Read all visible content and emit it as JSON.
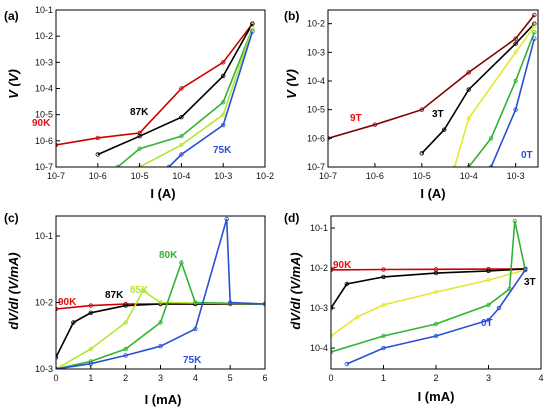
{
  "chart_data": [
    {
      "type": "line",
      "panel": "(a)",
      "xlabel": "I (A)",
      "ylabel": "V (V)",
      "xscale": "log",
      "yscale": "log",
      "xlim": [
        1e-07,
        0.01
      ],
      "ylim": [
        1e-07,
        0.1
      ],
      "xticks": [
        "10-7",
        "10-6",
        "10-5",
        "10-4",
        "10-3",
        "10-2"
      ],
      "yticks": [
        "10-7",
        "10-6",
        "10-5",
        "10-4",
        "10-3",
        "10-2",
        "10-1"
      ],
      "grid": false,
      "annotations": [
        {
          "text": "90K",
          "color": "#e01010"
        },
        {
          "text": "87K",
          "color": "#000000"
        },
        {
          "text": "75K",
          "color": "#2a4fd6"
        }
      ],
      "series": [
        {
          "label": "90K",
          "color": "#cc0000",
          "x": [
            1e-07,
            1e-06,
            1e-05,
            0.0001,
            0.001,
            0.005
          ],
          "y": [
            7e-07,
            1.3e-06,
            2e-06,
            0.0001,
            0.001,
            0.03
          ]
        },
        {
          "label": "87K",
          "color": "#000000",
          "x": [
            1e-06,
            1e-05,
            0.0001,
            0.001,
            0.005
          ],
          "y": [
            3e-07,
            1.5e-06,
            8e-06,
            0.0003,
            0.03
          ]
        },
        {
          "label": "",
          "color": "#32b432",
          "x": [
            3e-06,
            1e-05,
            0.0001,
            0.001,
            0.005
          ],
          "y": [
            1e-07,
            5e-07,
            1.5e-06,
            3e-05,
            0.02
          ]
        },
        {
          "label": "",
          "color": "#b4e632",
          "x": [
            1e-05,
            0.0001,
            0.001,
            0.005
          ],
          "y": [
            1e-07,
            7e-07,
            1e-05,
            0.02
          ]
        },
        {
          "label": "75K",
          "color": "#2a4fd6",
          "x": [
            5e-05,
            0.0001,
            0.001,
            0.005
          ],
          "y": [
            1e-07,
            3e-07,
            4e-06,
            0.015
          ]
        }
      ]
    },
    {
      "type": "line",
      "panel": "(b)",
      "xlabel": "I (A)",
      "ylabel": "V (V)",
      "xscale": "log",
      "yscale": "log",
      "xlim": [
        1e-07,
        0.003
      ],
      "ylim": [
        1e-07,
        0.03
      ],
      "xticks": [
        "10-7",
        "10-6",
        "10-5",
        "10-4",
        "10-3"
      ],
      "yticks": [
        "10-7",
        "10-6",
        "10-5",
        "10-4",
        "10-3",
        "10-2"
      ],
      "grid": false,
      "annotations": [
        {
          "text": "9T",
          "color": "#e01010"
        },
        {
          "text": "3T",
          "color": "#000000"
        },
        {
          "text": "0T",
          "color": "#2a4fd6"
        }
      ],
      "series": [
        {
          "label": "9T",
          "color": "#800000",
          "x": [
            1e-07,
            1e-06,
            1e-05,
            0.0001,
            0.001,
            0.0025
          ],
          "y": [
            1e-06,
            3e-06,
            1e-05,
            0.0002,
            0.003,
            0.02
          ]
        },
        {
          "label": "3T",
          "color": "#000000",
          "x": [
            1e-05,
            3e-05,
            0.0001,
            0.001,
            0.0025
          ],
          "y": [
            3e-07,
            2e-06,
            5e-05,
            0.002,
            0.01
          ]
        },
        {
          "label": "",
          "color": "#e6e632",
          "x": [
            5e-05,
            0.0001,
            0.001,
            0.0025
          ],
          "y": [
            1e-07,
            5e-06,
            0.001,
            0.008
          ]
        },
        {
          "label": "",
          "color": "#32b432",
          "x": [
            0.0001,
            0.0003,
            0.001,
            0.0025
          ],
          "y": [
            1e-07,
            1e-06,
            0.0001,
            0.005
          ]
        },
        {
          "label": "0T",
          "color": "#2a4fd6",
          "x": [
            0.0003,
            0.001,
            0.0025
          ],
          "y": [
            1e-07,
            1e-05,
            0.003
          ]
        }
      ]
    },
    {
      "type": "line",
      "panel": "(c)",
      "xlabel": "I (mA)",
      "ylabel": "dV/dI (V/mA)",
      "xscale": "linear",
      "yscale": "log",
      "xlim": [
        0,
        6
      ],
      "ylim": [
        0.001,
        0.2
      ],
      "xticks": [
        "0",
        "1",
        "2",
        "3",
        "4",
        "5",
        "6"
      ],
      "yticks": [
        "10-3",
        "10-2",
        "10-1"
      ],
      "grid": false,
      "annotations": [
        {
          "text": "90K",
          "color": "#e01010"
        },
        {
          "text": "87K",
          "color": "#000000"
        },
        {
          "text": "85K",
          "color": "#b4e632"
        },
        {
          "text": "80K",
          "color": "#32b432"
        },
        {
          "text": "75K",
          "color": "#2a4fd6"
        }
      ],
      "series": [
        {
          "label": "90K",
          "color": "#cc0000",
          "x": [
            0,
            1,
            2,
            3,
            4,
            5,
            6
          ],
          "y": [
            0.008,
            0.009,
            0.0095,
            0.0095,
            0.0095,
            0.0095,
            0.0095
          ]
        },
        {
          "label": "87K",
          "color": "#000000",
          "x": [
            0,
            0.5,
            1,
            2,
            3,
            4,
            6
          ],
          "y": [
            0.0015,
            0.005,
            0.007,
            0.009,
            0.0095,
            0.0095,
            0.0095
          ]
        },
        {
          "label": "85K",
          "color": "#b4e632",
          "x": [
            0,
            1,
            2,
            2.5,
            3,
            6
          ],
          "y": [
            0.001,
            0.002,
            0.005,
            0.015,
            0.01,
            0.0095
          ]
        },
        {
          "label": "80K",
          "color": "#32b432",
          "x": [
            0,
            1,
            2,
            3,
            3.6,
            4,
            6
          ],
          "y": [
            0.001,
            0.0013,
            0.002,
            0.005,
            0.04,
            0.01,
            0.0095
          ]
        },
        {
          "label": "75K",
          "color": "#2a4fd6",
          "x": [
            0,
            1,
            2,
            3,
            4,
            4.9,
            5,
            6
          ],
          "y": [
            0.001,
            0.0012,
            0.0016,
            0.0022,
            0.004,
            0.18,
            0.01,
            0.0095
          ]
        }
      ]
    },
    {
      "type": "line",
      "panel": "(d)",
      "xlabel": "I (mA)",
      "ylabel": "dV/dI (V/mA)",
      "xscale": "linear",
      "yscale": "log",
      "xlim": [
        0,
        4
      ],
      "ylim": [
        3e-05,
        0.2
      ],
      "xticks": [
        "0",
        "1",
        "2",
        "3",
        "4"
      ],
      "yticks": [
        "10-4",
        "10-3",
        "10-2",
        "10-1"
      ],
      "grid": false,
      "annotations": [
        {
          "text": "90K",
          "color": "#e01010"
        },
        {
          "text": "3T",
          "color": "#000000"
        },
        {
          "text": "0T",
          "color": "#2a4fd6"
        }
      ],
      "series": [
        {
          "label": "90K",
          "color": "#cc0000",
          "x": [
            0,
            1,
            2,
            3,
            3.7
          ],
          "y": [
            0.009,
            0.0092,
            0.0093,
            0.0094,
            0.0095
          ]
        },
        {
          "label": "3T",
          "color": "#000000",
          "x": [
            0,
            0.3,
            1,
            2,
            3,
            3.7
          ],
          "y": [
            0.001,
            0.004,
            0.006,
            0.0075,
            0.0085,
            0.0095
          ]
        },
        {
          "label": "",
          "color": "#e6e632",
          "x": [
            0,
            0.5,
            1,
            2,
            3,
            3.7
          ],
          "y": [
            0.0002,
            0.0006,
            0.0012,
            0.0025,
            0.005,
            0.009
          ]
        },
        {
          "label": "",
          "color": "#32b432",
          "x": [
            0,
            1,
            2,
            3,
            3.4,
            3.5,
            3.7
          ],
          "y": [
            8e-05,
            0.0002,
            0.0004,
            0.0012,
            0.003,
            0.15,
            0.009
          ]
        },
        {
          "label": "0T",
          "color": "#2a4fd6",
          "x": [
            0.3,
            1,
            2,
            3,
            3.2,
            3.7
          ],
          "y": [
            4e-05,
            0.0001,
            0.0002,
            0.0005,
            0.001,
            0.009
          ]
        }
      ]
    }
  ]
}
